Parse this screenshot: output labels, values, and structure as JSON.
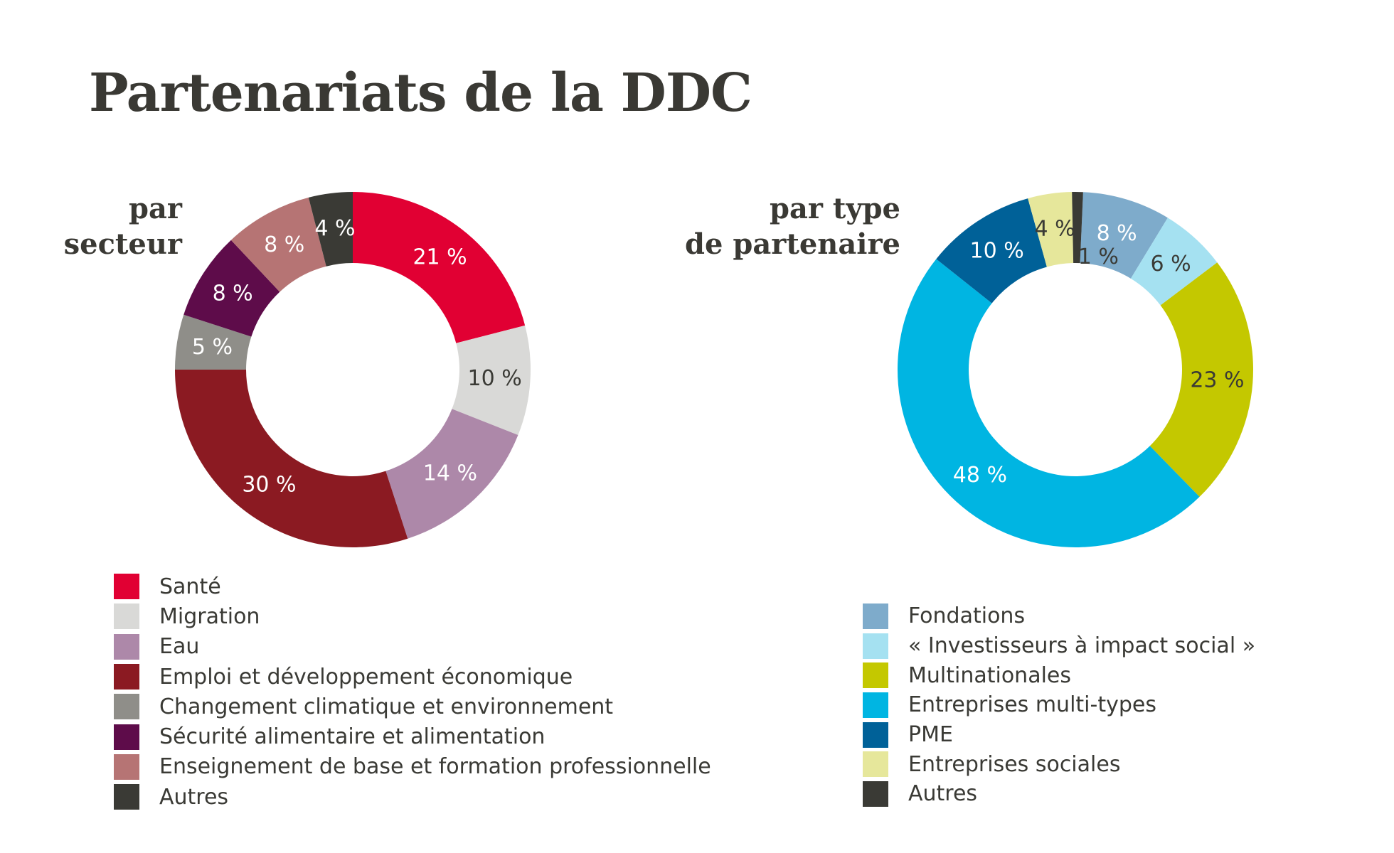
{
  "title": "Partenariats de la DDC",
  "chart_data": [
    {
      "type": "pie",
      "subtitle": [
        "par",
        "secteur"
      ],
      "slices": [
        {
          "name": "Santé",
          "value": 21,
          "label": "21 %",
          "color": "#e10033"
        },
        {
          "name": "Migration",
          "value": 10,
          "label": "10 %",
          "color": "#d9d9d7"
        },
        {
          "name": "Eau",
          "value": 14,
          "label": "14 %",
          "color": "#ad88a9"
        },
        {
          "name": "Emploi et développement économique",
          "value": 30,
          "label": "30 %",
          "color": "#8b1a22"
        },
        {
          "name": "Changement climatique et environnement",
          "value": 5,
          "label": "5 %",
          "color": "#8f8e89"
        },
        {
          "name": "Sécurité alimentaire et alimentation",
          "value": 8,
          "label": "8 %",
          "color": "#5e0c4a"
        },
        {
          "name": "Enseignement de base et formation professionnelle",
          "value": 8,
          "label": "8 %",
          "color": "#b67474"
        },
        {
          "name": "Autres",
          "value": 4,
          "label": "4 %",
          "color": "#3a3a35"
        }
      ]
    },
    {
      "type": "pie",
      "subtitle": [
        "par type",
        "de partenaire"
      ],
      "slices": [
        {
          "name": "Fondations",
          "value": 8,
          "label": "8 %",
          "color": "#7eabcb"
        },
        {
          "name": "« Investisseurs à impact social »",
          "value": 6,
          "label": "6 %",
          "color": "#a5e1f1"
        },
        {
          "name": "Multinationales",
          "value": 23,
          "label": "23 %",
          "color": "#c4c800"
        },
        {
          "name": "Entreprises multi-types",
          "value": 48,
          "label": "48 %",
          "color": "#00b5e2"
        },
        {
          "name": "PME",
          "value": 10,
          "label": "10 %",
          "color": "#006198"
        },
        {
          "name": "Entreprises sociales",
          "value": 4,
          "label": "4 %",
          "color": "#e6e79b"
        },
        {
          "name": "Autres",
          "value": 1,
          "label": "1 %",
          "color": "#3a3a35"
        }
      ]
    }
  ]
}
